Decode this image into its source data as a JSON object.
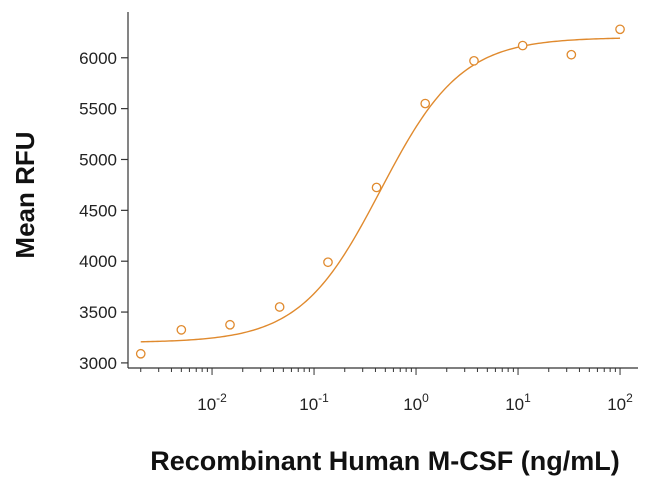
{
  "chart_data": {
    "type": "scatter",
    "title": "",
    "xlabel": "Recombinant Human M-CSF (ng/mL)",
    "ylabel": "Mean RFU",
    "x_scale": "log",
    "xlim": [
      0.0015,
      150
    ],
    "ylim": [
      2950,
      6450
    ],
    "x_ticks": [
      {
        "value": 0.01,
        "base": "10",
        "exp": "-2"
      },
      {
        "value": 0.1,
        "base": "10",
        "exp": "-1"
      },
      {
        "value": 1,
        "base": "10",
        "exp": "0"
      },
      {
        "value": 10,
        "base": "10",
        "exp": "1"
      },
      {
        "value": 100,
        "base": "10",
        "exp": "2"
      }
    ],
    "y_ticks": [
      3000,
      3500,
      4000,
      4500,
      5000,
      5500,
      6000
    ],
    "grid": false,
    "legend": "none",
    "color": "#e08a2e",
    "series": [
      {
        "points": [
          {
            "x": 0.002,
            "y": 3090
          },
          {
            "x": 0.005,
            "y": 3325
          },
          {
            "x": 0.015,
            "y": 3375
          },
          {
            "x": 0.046,
            "y": 3550
          },
          {
            "x": 0.137,
            "y": 3990
          },
          {
            "x": 0.41,
            "y": 4725
          },
          {
            "x": 1.23,
            "y": 5550
          },
          {
            "x": 3.7,
            "y": 5970
          },
          {
            "x": 11.1,
            "y": 6120
          },
          {
            "x": 33.3,
            "y": 6030
          },
          {
            "x": 100,
            "y": 6280
          }
        ],
        "fit_curve": {
          "model": "4PL",
          "bottom": 3200,
          "top": 6200,
          "ec50": 0.45,
          "hill": 1.1
        }
      }
    ]
  }
}
